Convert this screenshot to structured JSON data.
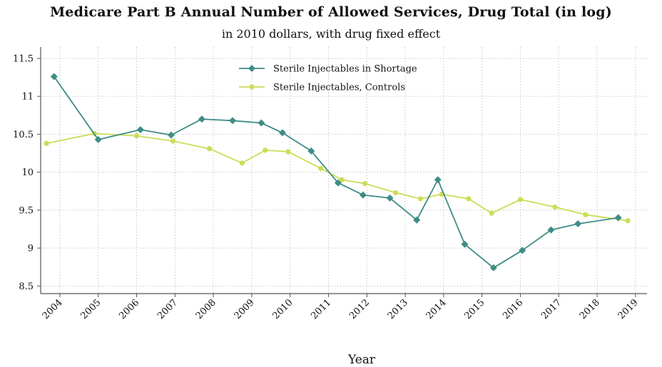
{
  "chart_data": {
    "type": "line",
    "title": "Medicare Part B Annual Number of Allowed Services, Drug Total (in log)",
    "subtitle": "in 2010 dollars, with drug fixed effect",
    "xlabel": "Year",
    "ylabel": "",
    "xlim": [
      2003.5,
      2019.3
    ],
    "ylim": [
      8.4,
      11.65
    ],
    "grid": true,
    "legend_position": "top-center",
    "x_ticks": [
      2004,
      2005,
      2006,
      2007,
      2008,
      2009,
      2010,
      2011,
      2012,
      2013,
      2014,
      2015,
      2016,
      2017,
      2018,
      2019
    ],
    "x_tick_labels": [
      "2004",
      "2005",
      "2006",
      "2007",
      "2008",
      "2009",
      "2010",
      "2011",
      "2012",
      "2013",
      "2014",
      "2015",
      "2016",
      "2017",
      "2018",
      "2019"
    ],
    "y_ticks": [
      8.5,
      9,
      9.5,
      10,
      10.5,
      11,
      11.5
    ],
    "y_tick_labels": [
      "8.5",
      "9",
      "9.5",
      "10",
      "10.5",
      "11",
      "11.5"
    ],
    "series": [
      {
        "name": "Sterile Injectables in Shortage",
        "color": "#3f8c86",
        "marker": "diamond",
        "x": [
          2003.85,
          2005.0,
          2006.1,
          2006.9,
          2007.7,
          2008.5,
          2009.25,
          2009.8,
          2010.55,
          2011.25,
          2011.9,
          2012.6,
          2013.3,
          2013.85,
          2014.55,
          2015.3,
          2016.05,
          2016.8,
          2017.5,
          2018.55
        ],
        "y": [
          11.26,
          10.43,
          10.56,
          10.49,
          10.7,
          10.68,
          10.65,
          10.52,
          10.28,
          9.86,
          9.7,
          9.66,
          9.37,
          9.9,
          9.05,
          8.74,
          8.97,
          9.24,
          9.32,
          9.4
        ]
      },
      {
        "name": "Sterile Injectables, Controls",
        "color": "#cddc57",
        "marker": "circle",
        "x": [
          2003.65,
          2004.9,
          2006.0,
          2006.95,
          2007.9,
          2008.75,
          2009.35,
          2009.95,
          2010.8,
          2011.35,
          2011.95,
          2012.75,
          2013.4,
          2013.95,
          2014.65,
          2015.25,
          2016.0,
          2016.9,
          2017.7,
          2018.8
        ],
        "y": [
          10.38,
          10.51,
          10.48,
          10.41,
          10.31,
          10.12,
          10.29,
          10.27,
          10.05,
          9.9,
          9.85,
          9.73,
          9.65,
          9.71,
          9.65,
          9.46,
          9.64,
          9.54,
          9.44,
          9.36
        ]
      }
    ]
  }
}
